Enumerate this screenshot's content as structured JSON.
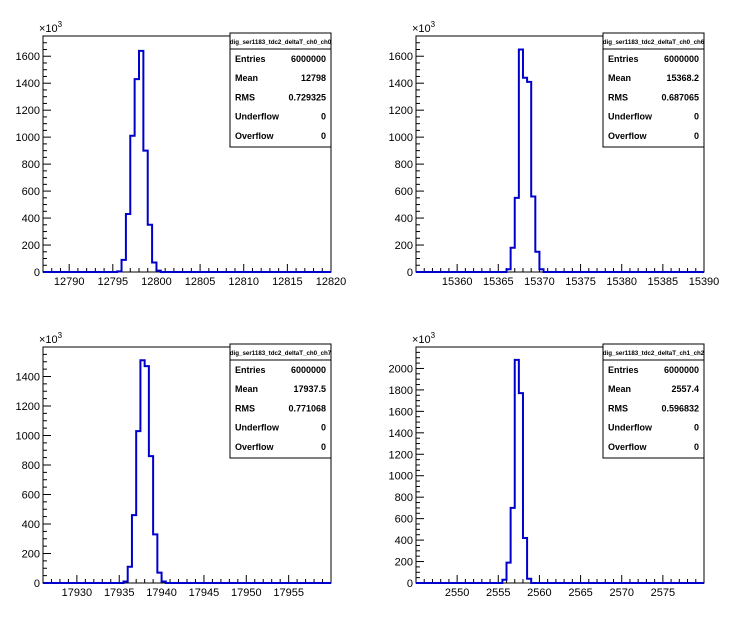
{
  "chart_data": [
    {
      "type": "histogram",
      "title": "dig_ser1183_tdc2_deltaT_ch0_ch0",
      "exponent_label": "×10",
      "exponent": "3",
      "xlim": [
        12787,
        12820
      ],
      "ylim": [
        0,
        1750
      ],
      "xticks": [
        12790,
        12795,
        12800,
        12805,
        12810,
        12815,
        12820
      ],
      "yticks": [
        0,
        200,
        400,
        600,
        800,
        1000,
        1200,
        1400,
        1600
      ],
      "bin_width": 0.5,
      "bins": [
        {
          "x": 12795.0,
          "y": 0
        },
        {
          "x": 12795.5,
          "y": 5
        },
        {
          "x": 12796.0,
          "y": 90
        },
        {
          "x": 12796.5,
          "y": 430
        },
        {
          "x": 12797.0,
          "y": 1010
        },
        {
          "x": 12797.5,
          "y": 1430
        },
        {
          "x": 12798.0,
          "y": 1640
        },
        {
          "x": 12798.5,
          "y": 900
        },
        {
          "x": 12799.0,
          "y": 350
        },
        {
          "x": 12799.5,
          "y": 70
        },
        {
          "x": 12800.0,
          "y": 10
        },
        {
          "x": 12800.5,
          "y": 0
        }
      ],
      "stats": [
        {
          "label": "Entries",
          "value": "6000000"
        },
        {
          "label": "Mean",
          "value": "12798"
        },
        {
          "label": "RMS",
          "value": "0.729325"
        },
        {
          "label": "Underflow",
          "value": "0"
        },
        {
          "label": "Overflow",
          "value": "0"
        }
      ]
    },
    {
      "type": "histogram",
      "title": "dig_ser1183_tdc2_deltaT_ch0_ch6",
      "exponent_label": "×10",
      "exponent": "3",
      "xlim": [
        15355,
        15390
      ],
      "ylim": [
        0,
        1750
      ],
      "xticks": [
        15360,
        15365,
        15370,
        15375,
        15380,
        15385,
        15390
      ],
      "yticks": [
        0,
        200,
        400,
        600,
        800,
        1000,
        1200,
        1400,
        1600
      ],
      "bin_width": 0.5,
      "bins": [
        {
          "x": 15365.5,
          "y": 0
        },
        {
          "x": 15366.0,
          "y": 20
        },
        {
          "x": 15366.5,
          "y": 180
        },
        {
          "x": 15367.0,
          "y": 550
        },
        {
          "x": 15367.5,
          "y": 1650
        },
        {
          "x": 15368.0,
          "y": 1440
        },
        {
          "x": 15368.5,
          "y": 1410
        },
        {
          "x": 15369.0,
          "y": 560
        },
        {
          "x": 15369.5,
          "y": 150
        },
        {
          "x": 15370.0,
          "y": 20
        },
        {
          "x": 15370.5,
          "y": 0
        }
      ],
      "stats": [
        {
          "label": "Entries",
          "value": "6000000"
        },
        {
          "label": "Mean",
          "value": "15368.2"
        },
        {
          "label": "RMS",
          "value": "0.687065"
        },
        {
          "label": "Underflow",
          "value": "0"
        },
        {
          "label": "Overflow",
          "value": "0"
        }
      ]
    },
    {
      "type": "histogram",
      "title": "dig_ser1183_tdc2_deltaT_ch0_ch7",
      "exponent_label": "×10",
      "exponent": "3",
      "xlim": [
        17926,
        17960
      ],
      "ylim": [
        0,
        1600
      ],
      "xticks": [
        17930,
        17935,
        17940,
        17945,
        17950,
        17955
      ],
      "yticks": [
        0,
        200,
        400,
        600,
        800,
        1000,
        1200,
        1400
      ],
      "bin_width": 0.5,
      "bins": [
        {
          "x": 17935.0,
          "y": 0
        },
        {
          "x": 17935.5,
          "y": 10
        },
        {
          "x": 17936.0,
          "y": 110
        },
        {
          "x": 17936.5,
          "y": 460
        },
        {
          "x": 17937.0,
          "y": 1030
        },
        {
          "x": 17937.5,
          "y": 1510
        },
        {
          "x": 17938.0,
          "y": 1470
        },
        {
          "x": 17938.5,
          "y": 860
        },
        {
          "x": 17939.0,
          "y": 330
        },
        {
          "x": 17939.5,
          "y": 70
        },
        {
          "x": 17940.0,
          "y": 10
        },
        {
          "x": 17940.5,
          "y": 0
        }
      ],
      "stats": [
        {
          "label": "Entries",
          "value": "6000000"
        },
        {
          "label": "Mean",
          "value": "17937.5"
        },
        {
          "label": "RMS",
          "value": "0.771068"
        },
        {
          "label": "Underflow",
          "value": "0"
        },
        {
          "label": "Overflow",
          "value": "0"
        }
      ]
    },
    {
      "type": "histogram",
      "title": "dig_ser1183_tdc2_deltaT_ch1_ch2",
      "exponent_label": "×10",
      "exponent": "3",
      "xlim": [
        2545,
        2580
      ],
      "ylim": [
        0,
        2200
      ],
      "xticks": [
        2550,
        2555,
        2560,
        2565,
        2570,
        2575
      ],
      "yticks": [
        0,
        200,
        400,
        600,
        800,
        1000,
        1200,
        1400,
        1600,
        1800,
        2000
      ],
      "bin_width": 0.5,
      "bins": [
        {
          "x": 2555.0,
          "y": 0
        },
        {
          "x": 2555.5,
          "y": 30
        },
        {
          "x": 2556.0,
          "y": 190
        },
        {
          "x": 2556.5,
          "y": 700
        },
        {
          "x": 2557.0,
          "y": 2080
        },
        {
          "x": 2557.5,
          "y": 1770
        },
        {
          "x": 2558.0,
          "y": 420
        },
        {
          "x": 2558.5,
          "y": 40
        },
        {
          "x": 2559.0,
          "y": 0
        }
      ],
      "stats": [
        {
          "label": "Entries",
          "value": "6000000"
        },
        {
          "label": "Mean",
          "value": "2557.4"
        },
        {
          "label": "RMS",
          "value": "0.596832"
        },
        {
          "label": "Underflow",
          "value": "0"
        },
        {
          "label": "Overflow",
          "value": "0"
        }
      ]
    }
  ],
  "colors": {
    "histogram_line": "#0000cc",
    "axis": "#000000",
    "background": "#ffffff"
  }
}
